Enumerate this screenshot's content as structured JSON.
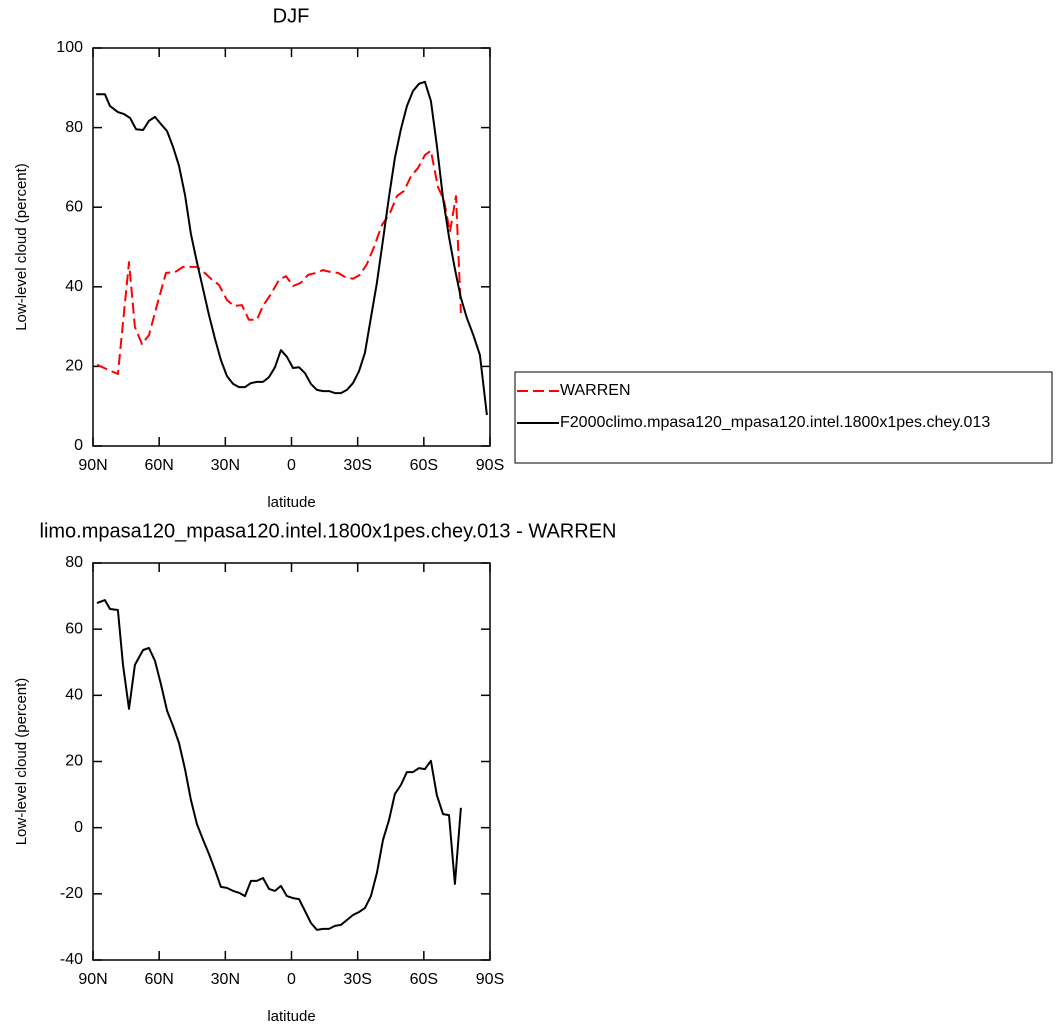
{
  "chart_data": [
    {
      "type": "line",
      "title": "DJF",
      "xlabel": "latitude",
      "ylabel": "Low-level cloud (percent)",
      "xlim": [
        90,
        -90
      ],
      "xticks": [
        {
          "value": 90,
          "label": "90N"
        },
        {
          "value": 60,
          "label": "60N"
        },
        {
          "value": 30,
          "label": "30N"
        },
        0,
        {
          "value": -30,
          "label": "30S"
        },
        {
          "value": -60,
          "label": "60S"
        },
        {
          "value": -90,
          "label": "90S"
        }
      ],
      "ylim": [
        0,
        100
      ],
      "yticks": [
        0,
        20,
        40,
        60,
        80,
        100
      ],
      "legend": "right",
      "series": [
        {
          "name": "WARREN",
          "color": "#ff0000",
          "dashed": true,
          "x": [
            88.2,
            78.7,
            73.7,
            71,
            67.8,
            64.6,
            61,
            56.9,
            52.8,
            49.2,
            46,
            42.9,
            39.7,
            36.5,
            32.9,
            29.3,
            26.1,
            22.5,
            19.3,
            15.7,
            12.9,
            9.3,
            5.7,
            2.5,
            -0.7,
            -4.3,
            -7.5,
            -11.1,
            -14.3,
            -17.9,
            -21.1,
            -24.2,
            -27.9,
            -31,
            -34.2,
            -37.4,
            -41,
            -44.6,
            -47.8,
            -51,
            -54.2,
            -57.3,
            -60.5,
            -63.2,
            -66.4,
            -69.1,
            -71.8,
            -74.6,
            -76.8
          ],
          "values": [
            20.4,
            18.1,
            46.2,
            29.9,
            25.6,
            27.9,
            35.4,
            43.5,
            43.7,
            45,
            45,
            45,
            43.7,
            42,
            40.5,
            36.7,
            35.2,
            35.4,
            31.7,
            31.7,
            35.2,
            38.2,
            41.7,
            42.7,
            40.2,
            41,
            43,
            43.5,
            44.2,
            43.7,
            43.5,
            42.5,
            42,
            43,
            45.7,
            50,
            55.5,
            58.5,
            62.8,
            64.1,
            67.8,
            69.8,
            73.1,
            74.2,
            65.1,
            61.8,
            53.8,
            62.8,
            33.4
          ]
        },
        {
          "name": "F2000climo.mpasa120_mpasa120.intel.1800x1pes.chey.013",
          "color": "#000000",
          "dashed": false,
          "x": [
            88.6,
            84.6,
            82.3,
            78.7,
            75.9,
            73.2,
            70.5,
            67.3,
            64.6,
            61.9,
            59.2,
            56.4,
            53.7,
            51,
            48.3,
            45.6,
            42.9,
            40.1,
            37.4,
            34.7,
            32,
            29.3,
            26.5,
            23.8,
            21.1,
            18.4,
            15.7,
            12.9,
            10.2,
            7.5,
            4.8,
            2.1,
            -0.7,
            -3.4,
            -6.1,
            -8.8,
            -11.5,
            -14.3,
            -17,
            -19.7,
            -22.4,
            -25.1,
            -27.9,
            -30.6,
            -33.3,
            -36,
            -38.7,
            -41.5,
            -44.2,
            -46.9,
            -49.6,
            -52.3,
            -55.1,
            -57.8,
            -60.5,
            -63.2,
            -65.9,
            -68.7,
            -71.4,
            -74.1,
            -76.8,
            -79.5,
            -82.3,
            -85.4,
            -88.6
          ],
          "values": [
            88.4,
            88.4,
            85.4,
            83.9,
            83.4,
            82.4,
            79.6,
            79.4,
            81.7,
            82.7,
            80.9,
            79.1,
            75.1,
            70.4,
            63.1,
            53.3,
            46.2,
            39.4,
            32.9,
            26.9,
            21.6,
            17.6,
            15.6,
            14.8,
            14.8,
            15.8,
            16.1,
            16.1,
            17.3,
            19.8,
            24.1,
            22.4,
            19.6,
            19.8,
            18.3,
            15.6,
            14.1,
            13.8,
            13.8,
            13.3,
            13.3,
            14.1,
            15.8,
            18.8,
            23.4,
            32.2,
            41,
            51.8,
            62.6,
            72.4,
            79.6,
            85.4,
            89.2,
            91,
            91.5,
            86.7,
            75.6,
            62.3,
            52.5,
            44.5,
            37.2,
            32.2,
            28.1,
            22.9,
            7.8
          ]
        }
      ]
    },
    {
      "type": "line",
      "title": "limo.mpasa120_mpasa120.intel.1800x1pes.chey.013 - WARREN",
      "xlabel": "latitude",
      "ylabel": "Low-level cloud (percent)",
      "xlim": [
        90,
        -90
      ],
      "xticks": [
        {
          "value": 90,
          "label": "90N"
        },
        {
          "value": 60,
          "label": "60N"
        },
        {
          "value": 30,
          "label": "30N"
        },
        0,
        {
          "value": -30,
          "label": "30S"
        },
        {
          "value": -60,
          "label": "60S"
        },
        {
          "value": -90,
          "label": "90S"
        }
      ],
      "ylim": [
        -40,
        80
      ],
      "yticks": [
        -40,
        -20,
        0,
        20,
        40,
        60,
        80
      ],
      "series": [
        {
          "color": "#000000",
          "dashed": false,
          "x": [
            88.2,
            84.6,
            82.3,
            78.7,
            76.4,
            73.7,
            71,
            67.3,
            64.6,
            61.9,
            59.2,
            56.4,
            53.7,
            51,
            48.3,
            45.6,
            42.9,
            40.1,
            37.4,
            34.7,
            32,
            29.3,
            26.5,
            23.8,
            21.1,
            18.4,
            15.7,
            12.9,
            10.2,
            7.5,
            4.8,
            2.1,
            -0.7,
            -3.4,
            -6.1,
            -8.8,
            -11.5,
            -14.3,
            -17,
            -19.7,
            -22.4,
            -25.1,
            -27.9,
            -30.6,
            -33.3,
            -36,
            -38.7,
            -41.5,
            -44.2,
            -46.9,
            -49.6,
            -52.3,
            -55.1,
            -57.8,
            -60.5,
            -63.2,
            -65.9,
            -68.7,
            -71.4,
            -74.1,
            -76.8
          ],
          "values": [
            67.9,
            68.8,
            66.1,
            65.8,
            49.2,
            35.9,
            49.2,
            53.7,
            54.3,
            50.4,
            43.4,
            35.3,
            30.7,
            25.6,
            17.7,
            8.4,
            1.1,
            -3.7,
            -8,
            -12.8,
            -17.9,
            -18.2,
            -19.1,
            -19.7,
            -20.7,
            -16.1,
            -16.1,
            -15.2,
            -18.5,
            -19.1,
            -17.6,
            -20.7,
            -21.3,
            -21.6,
            -25.2,
            -28.8,
            -30.9,
            -30.6,
            -30.6,
            -29.7,
            -29.4,
            -27.9,
            -26.4,
            -25.5,
            -24.3,
            -20.7,
            -13.7,
            -3.7,
            2.3,
            10.2,
            12.9,
            16.8,
            16.8,
            18,
            17.7,
            20.2,
            9.9,
            4.1,
            3.8,
            -17,
            6
          ]
        }
      ]
    }
  ]
}
